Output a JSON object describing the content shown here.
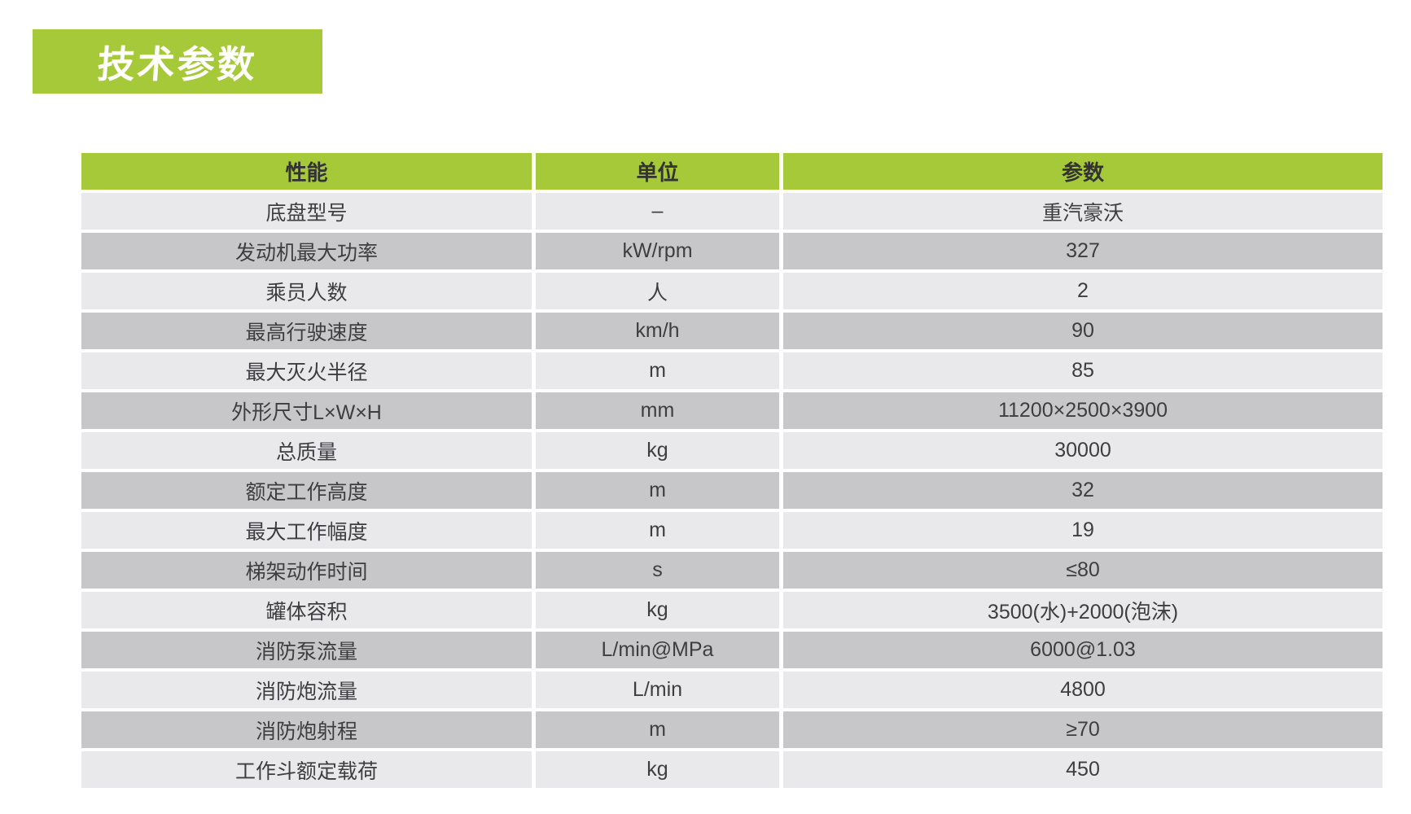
{
  "page_title": {
    "label": "技术参数"
  },
  "colors": {
    "green": "#a6c939",
    "row_light": "#e9e9ec",
    "row_dark": "#c7c7c9",
    "cell_text": "#3e3e40",
    "header_text": "#333333",
    "title_text": "#ffffff"
  },
  "table": {
    "columns": [
      "性能",
      "单位",
      "参数"
    ],
    "rows": [
      {
        "name": "底盘型号",
        "unit": "–",
        "value": "重汽豪沃"
      },
      {
        "name": "发动机最大功率",
        "unit": "kW/rpm",
        "value": "327"
      },
      {
        "name": "乘员人数",
        "unit": "人",
        "value": "2"
      },
      {
        "name": "最高行驶速度",
        "unit": "km/h",
        "value": "90"
      },
      {
        "name": "最大灭火半径",
        "unit": "m",
        "value": "85"
      },
      {
        "name": "外形尺寸L×W×H",
        "unit": "mm",
        "value": "11200×2500×3900"
      },
      {
        "name": "总质量",
        "unit": "kg",
        "value": "30000"
      },
      {
        "name": "额定工作高度",
        "unit": "m",
        "value": "32"
      },
      {
        "name": "最大工作幅度",
        "unit": "m",
        "value": "19"
      },
      {
        "name": "梯架动作时间",
        "unit": "s",
        "value": "≤80"
      },
      {
        "name": "罐体容积",
        "unit": "kg",
        "value": "3500(水)+2000(泡沫)"
      },
      {
        "name": "消防泵流量",
        "unit": "L/min@MPa",
        "value": "6000@1.03"
      },
      {
        "name": "消防炮流量",
        "unit": "L/min",
        "value": "4800"
      },
      {
        "name": "消防炮射程",
        "unit": "m",
        "value": "≥70"
      },
      {
        "name": "工作斗额定载荷",
        "unit": "kg",
        "value": "450"
      }
    ]
  }
}
